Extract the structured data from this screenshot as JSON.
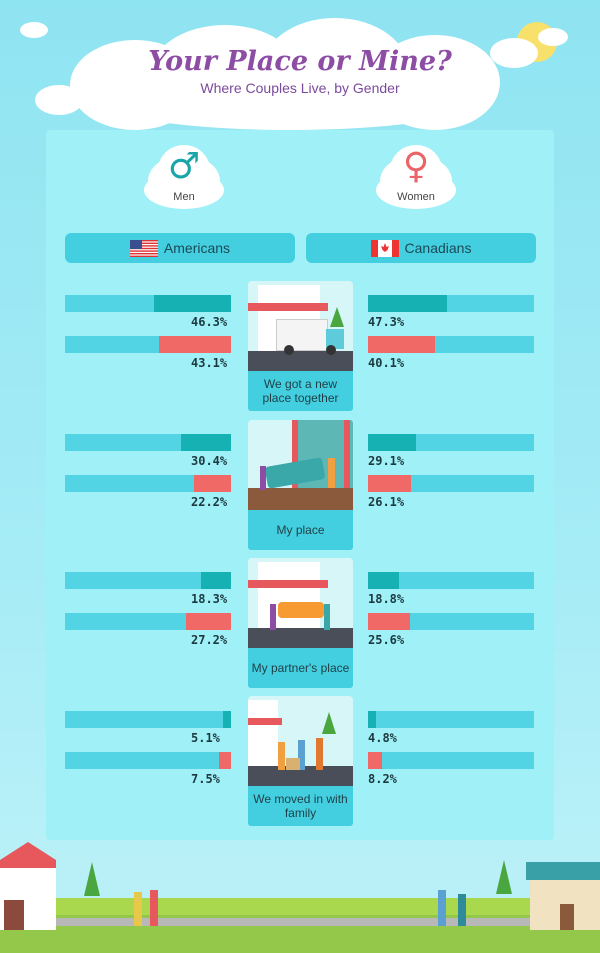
{
  "title": "Your Place or Mine?",
  "subtitle": "Where Couples Live, by Gender",
  "genders": {
    "men": {
      "label": "Men",
      "symbol": "♂",
      "color": "#1aa6a8"
    },
    "women": {
      "label": "Women",
      "symbol": "♀",
      "color": "#ea6468"
    }
  },
  "countries": {
    "left": "Americans",
    "right": "Canadians"
  },
  "colors": {
    "men": "#16b1b2",
    "women": "#f06966",
    "track": "#52d4e4"
  },
  "chart_data": {
    "type": "bar",
    "title": "Your Place or Mine?",
    "subtitle": "Where Couples Live, by Gender",
    "categories": [
      "We got a new place together",
      "My place",
      "My partner's place",
      "We moved in with family"
    ],
    "series": [
      {
        "name": "Americans - Men",
        "values": [
          46.3,
          30.4,
          18.3,
          5.1
        ]
      },
      {
        "name": "Americans - Women",
        "values": [
          43.1,
          22.2,
          27.2,
          7.5
        ]
      },
      {
        "name": "Canadians - Men",
        "values": [
          47.3,
          29.1,
          18.8,
          4.8
        ]
      },
      {
        "name": "Canadians - Women",
        "values": [
          40.1,
          26.1,
          25.6,
          8.2
        ]
      }
    ],
    "labels": {
      "americans_men": [
        "46.3%",
        "30.4%",
        "18.3%",
        "5.1%"
      ],
      "americans_women": [
        "43.1%",
        "22.2%",
        "27.2%",
        "7.5%"
      ],
      "canadians_men": [
        "47.3%",
        "29.1%",
        "18.8%",
        "4.8%"
      ],
      "canadians_women": [
        "40.1%",
        "26.1%",
        "25.6%",
        "8.2%"
      ]
    },
    "ylim": [
      0,
      100
    ],
    "xlabel": "",
    "ylabel": ""
  }
}
